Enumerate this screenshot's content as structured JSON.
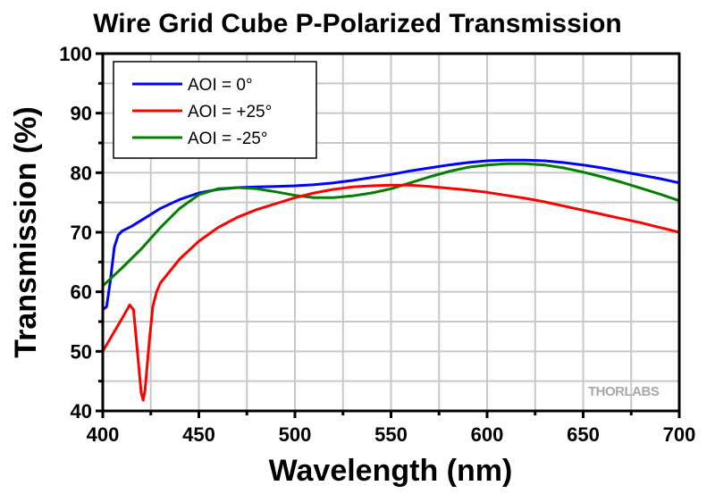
{
  "chart_data": {
    "type": "line",
    "title": "Wire Grid Cube P-Polarized Transmission",
    "xlabel": "Wavelength (nm)",
    "ylabel": "Transmission (%)",
    "xlim": [
      400,
      700
    ],
    "ylim": [
      40,
      100
    ],
    "xticks": [
      400,
      450,
      500,
      550,
      600,
      650,
      700
    ],
    "yticks": [
      40,
      50,
      60,
      70,
      80,
      90,
      100
    ],
    "grid": true,
    "legend_position": "top-left",
    "watermark": "THORLABS",
    "series": [
      {
        "name": "AOI = 0°",
        "color": "#0000ff",
        "x": [
          400,
          402,
          404,
          406,
          408,
          410,
          415,
          420,
          425,
          430,
          440,
          450,
          460,
          470,
          480,
          490,
          500,
          510,
          520,
          530,
          540,
          550,
          560,
          570,
          580,
          590,
          600,
          610,
          620,
          630,
          640,
          650,
          660,
          670,
          680,
          690,
          700
        ],
        "y": [
          57.0,
          57.5,
          62.0,
          67.5,
          69.5,
          70.2,
          71.0,
          72.0,
          73.0,
          74.0,
          75.5,
          76.6,
          77.2,
          77.5,
          77.6,
          77.7,
          77.8,
          78.0,
          78.3,
          78.7,
          79.2,
          79.7,
          80.3,
          80.8,
          81.3,
          81.7,
          82.0,
          82.1,
          82.1,
          82.0,
          81.7,
          81.3,
          80.8,
          80.2,
          79.6,
          79.0,
          78.3
        ]
      },
      {
        "name": "AOI = +25°",
        "color": "#ff0000",
        "x": [
          400,
          405,
          410,
          414,
          416,
          418,
          420,
          421,
          422,
          424,
          426,
          428,
          430,
          435,
          440,
          450,
          460,
          470,
          480,
          490,
          500,
          510,
          520,
          530,
          540,
          550,
          560,
          570,
          580,
          590,
          600,
          610,
          620,
          630,
          640,
          650,
          660,
          670,
          680,
          690,
          700
        ],
        "y": [
          50.0,
          52.8,
          55.5,
          57.8,
          57.0,
          50.0,
          43.0,
          41.8,
          43.5,
          51.0,
          57.5,
          60.0,
          61.5,
          63.5,
          65.5,
          68.5,
          70.8,
          72.5,
          73.8,
          74.8,
          75.8,
          76.6,
          77.2,
          77.6,
          77.8,
          77.9,
          77.9,
          77.7,
          77.4,
          77.1,
          76.7,
          76.2,
          75.7,
          75.1,
          74.4,
          73.7,
          73.0,
          72.3,
          71.6,
          70.8,
          70.0
        ]
      },
      {
        "name": "AOI = -25°",
        "color": "#008000",
        "x": [
          400,
          410,
          420,
          430,
          440,
          450,
          460,
          470,
          480,
          490,
          500,
          510,
          520,
          530,
          540,
          550,
          560,
          570,
          580,
          590,
          600,
          610,
          620,
          630,
          640,
          650,
          660,
          670,
          680,
          690,
          700
        ],
        "y": [
          61.0,
          64.0,
          67.2,
          70.8,
          74.0,
          76.3,
          77.3,
          77.5,
          77.3,
          76.8,
          76.2,
          75.8,
          75.8,
          76.1,
          76.6,
          77.3,
          78.3,
          79.3,
          80.2,
          80.9,
          81.3,
          81.5,
          81.5,
          81.3,
          80.8,
          80.1,
          79.3,
          78.4,
          77.4,
          76.4,
          75.3
        ]
      }
    ]
  }
}
